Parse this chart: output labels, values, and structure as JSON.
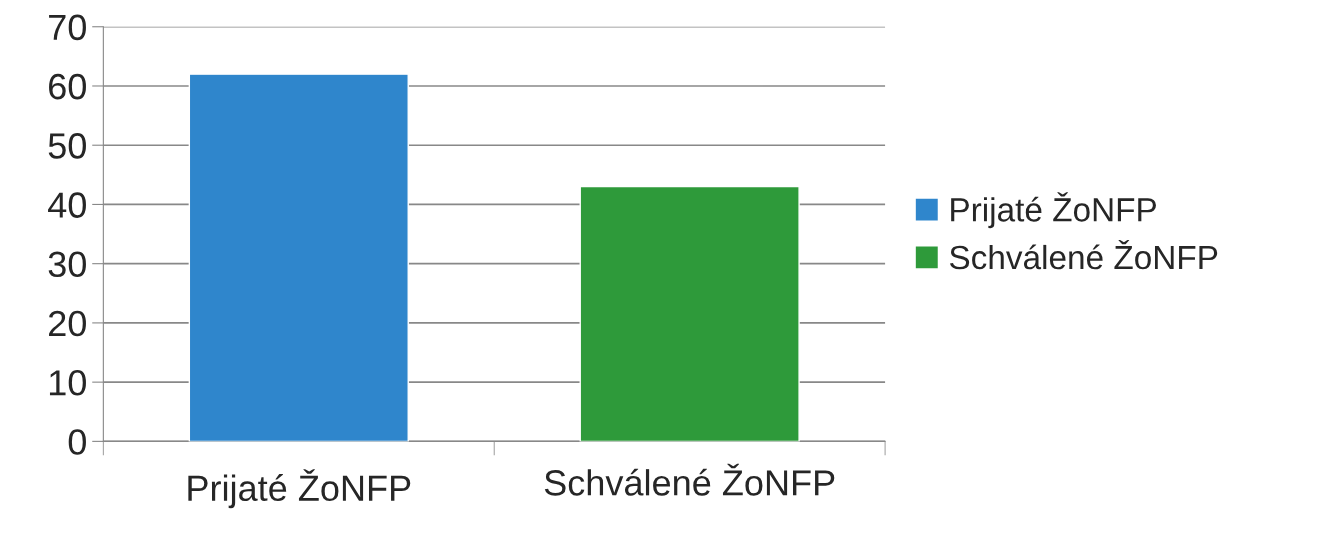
{
  "chart_data": {
    "type": "bar",
    "categories": [
      "Prijaté ŽoNFP",
      "Schválené ŽoNFP"
    ],
    "series": [
      {
        "name": "Prijaté ŽoNFP",
        "color": "#2f86cc",
        "values": [
          62,
          null
        ]
      },
      {
        "name": "Schválené ŽoNFP",
        "color": "#2e9a3a",
        "values": [
          null,
          43
        ]
      }
    ],
    "ylim": [
      0,
      70
    ],
    "yticks": [
      0,
      10,
      20,
      30,
      40,
      50,
      60,
      70
    ],
    "grid": "y",
    "legend": "right"
  }
}
